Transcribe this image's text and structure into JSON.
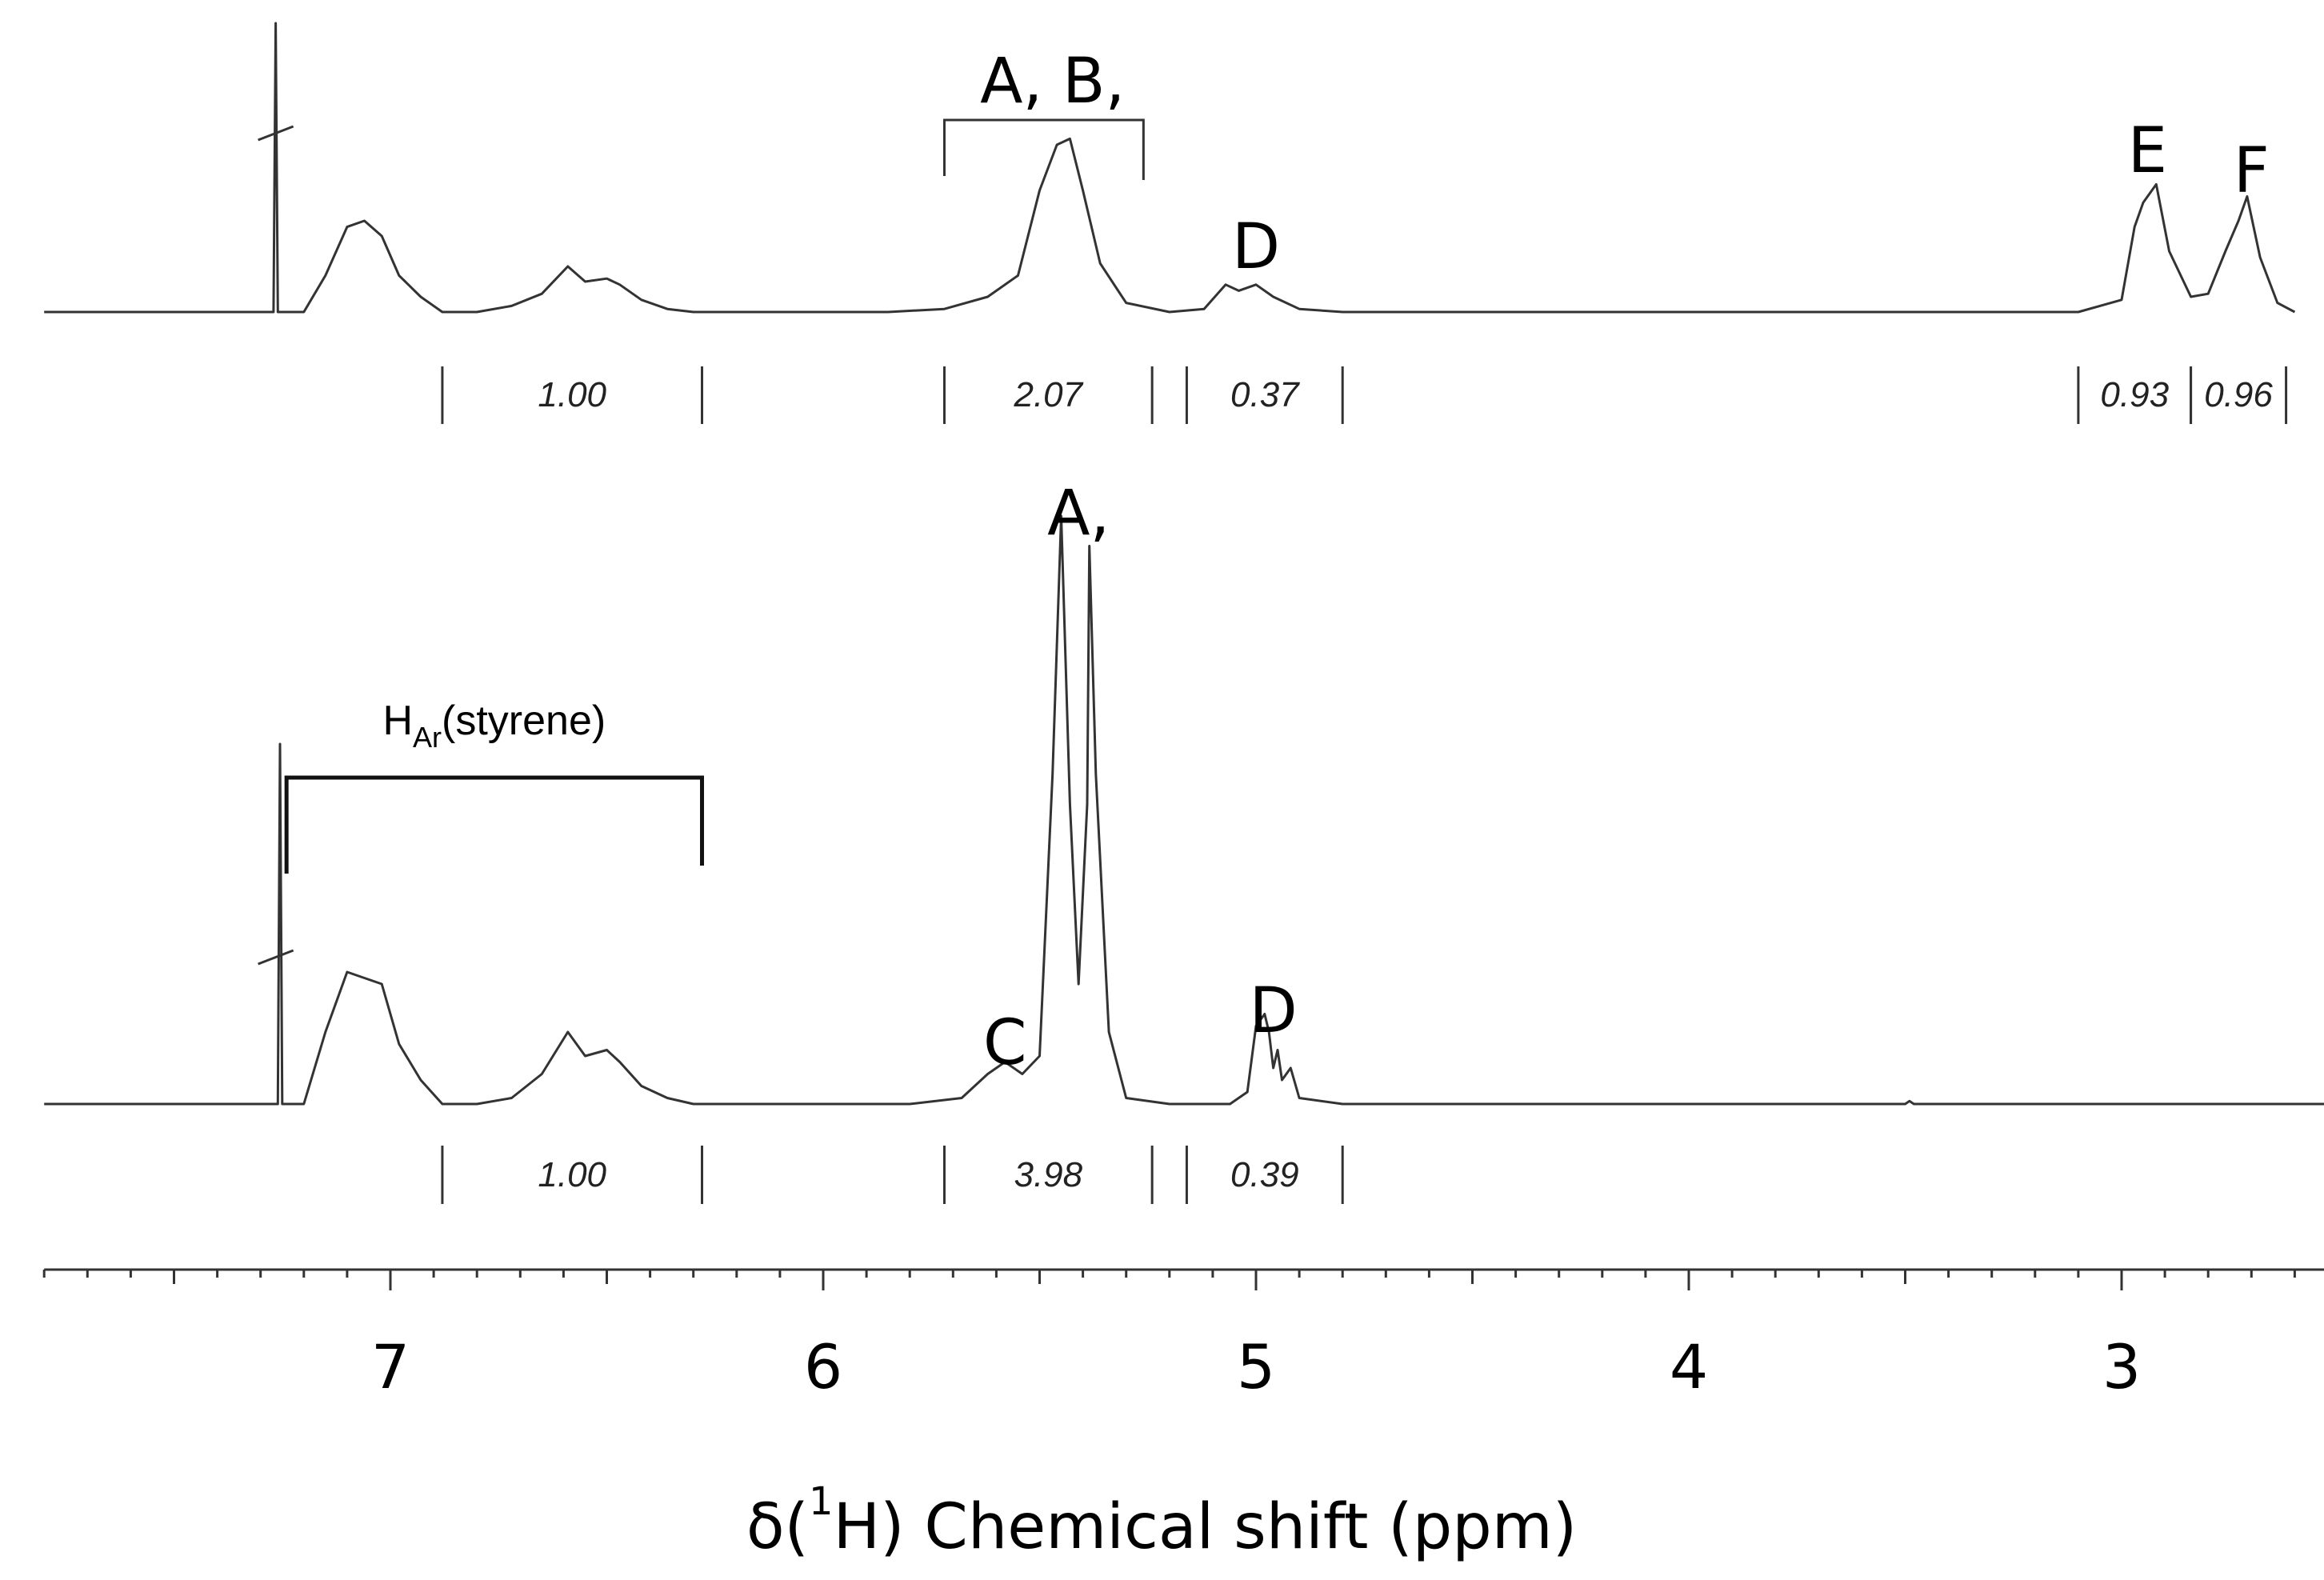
{
  "chart_data": {
    "type": "line",
    "x_axis": {
      "label_prefix": "δ(",
      "label_superscript": "1",
      "label_suffix": "H) Chemical shift (ppm)",
      "range_ppm": [
        7.8,
        2.5
      ],
      "reversed": true,
      "major_ticks": [
        7,
        6,
        5,
        4,
        3
      ],
      "minor_tick_step": 0.1
    },
    "grid": false,
    "spectra": [
      {
        "panel": "top",
        "trace": [
          [
            7.8,
            0
          ],
          [
            7.4,
            0
          ],
          [
            7.27,
            0
          ],
          [
            7.265,
            0.95
          ],
          [
            7.26,
            0
          ],
          [
            7.2,
            0
          ],
          [
            7.15,
            0.12
          ],
          [
            7.1,
            0.28
          ],
          [
            7.06,
            0.3
          ],
          [
            7.02,
            0.25
          ],
          [
            6.98,
            0.12
          ],
          [
            6.93,
            0.05
          ],
          [
            6.88,
            0
          ],
          [
            6.8,
            0
          ],
          [
            6.72,
            0.02
          ],
          [
            6.65,
            0.06
          ],
          [
            6.59,
            0.15
          ],
          [
            6.55,
            0.1
          ],
          [
            6.5,
            0.11
          ],
          [
            6.47,
            0.09
          ],
          [
            6.42,
            0.04
          ],
          [
            6.36,
            0.01
          ],
          [
            6.3,
            0
          ],
          [
            5.85,
            0
          ],
          [
            5.72,
            0.01
          ],
          [
            5.62,
            0.05
          ],
          [
            5.55,
            0.12
          ],
          [
            5.5,
            0.4
          ],
          [
            5.46,
            0.55
          ],
          [
            5.43,
            0.57
          ],
          [
            5.4,
            0.4
          ],
          [
            5.36,
            0.16
          ],
          [
            5.3,
            0.03
          ],
          [
            5.2,
            0
          ],
          [
            5.12,
            0.01
          ],
          [
            5.07,
            0.09
          ],
          [
            5.04,
            0.07
          ],
          [
            5.0,
            0.09
          ],
          [
            4.96,
            0.05
          ],
          [
            4.9,
            0.01
          ],
          [
            4.8,
            0
          ],
          [
            3.1,
            0
          ],
          [
            3.0,
            0.04
          ],
          [
            2.97,
            0.28
          ],
          [
            2.95,
            0.36
          ],
          [
            2.92,
            0.42
          ],
          [
            2.89,
            0.2
          ],
          [
            2.84,
            0.05
          ],
          [
            2.8,
            0.06
          ],
          [
            2.76,
            0.2
          ],
          [
            2.73,
            0.3
          ],
          [
            2.71,
            0.38
          ],
          [
            2.68,
            0.18
          ],
          [
            2.64,
            0.03
          ],
          [
            2.6,
            0
          ]
        ],
        "peak_labels": [
          {
            "text": "A, B,",
            "x": 5.47,
            "bracket_from": 5.72,
            "bracket_to": 5.26
          },
          {
            "text": "D",
            "x": 5.0
          },
          {
            "text": "E",
            "x": 2.94
          },
          {
            "text": "F",
            "x": 2.7
          }
        ],
        "integrals": [
          {
            "from": 6.88,
            "to": 6.28,
            "value": "1.00"
          },
          {
            "from": 5.72,
            "to": 5.24,
            "value": "2.07"
          },
          {
            "from": 5.16,
            "to": 4.8,
            "value": "0.37"
          },
          {
            "from": 3.1,
            "to": 2.84,
            "value": "0.93"
          },
          {
            "from": 2.84,
            "to": 2.62,
            "value": "0.96"
          }
        ]
      },
      {
        "panel": "bottom",
        "trace": [
          [
            7.8,
            0
          ],
          [
            7.4,
            0
          ],
          [
            7.26,
            0
          ],
          [
            7.255,
            0.6
          ],
          [
            7.25,
            0
          ],
          [
            7.2,
            0
          ],
          [
            7.15,
            0.12
          ],
          [
            7.1,
            0.22
          ],
          [
            7.06,
            0.21
          ],
          [
            7.02,
            0.2
          ],
          [
            6.98,
            0.1
          ],
          [
            6.93,
            0.04
          ],
          [
            6.88,
            0
          ],
          [
            6.8,
            0
          ],
          [
            6.72,
            0.01
          ],
          [
            6.65,
            0.05
          ],
          [
            6.59,
            0.12
          ],
          [
            6.55,
            0.08
          ],
          [
            6.5,
            0.09
          ],
          [
            6.47,
            0.07
          ],
          [
            6.42,
            0.03
          ],
          [
            6.36,
            0.01
          ],
          [
            6.3,
            0
          ],
          [
            5.8,
            0
          ],
          [
            5.68,
            0.01
          ],
          [
            5.62,
            0.05
          ],
          [
            5.58,
            0.07
          ],
          [
            5.54,
            0.05
          ],
          [
            5.5,
            0.08
          ],
          [
            5.47,
            0.55
          ],
          [
            5.45,
            0.98
          ],
          [
            5.43,
            0.5
          ],
          [
            5.41,
            0.2
          ],
          [
            5.39,
            0.5
          ],
          [
            5.385,
            0.93
          ],
          [
            5.37,
            0.55
          ],
          [
            5.34,
            0.12
          ],
          [
            5.3,
            0.01
          ],
          [
            5.2,
            0
          ],
          [
            5.06,
            0
          ],
          [
            5.02,
            0.02
          ],
          [
            5.0,
            0.13
          ],
          [
            4.98,
            0.15
          ],
          [
            4.97,
            0.12
          ],
          [
            4.96,
            0.06
          ],
          [
            4.95,
            0.09
          ],
          [
            4.94,
            0.04
          ],
          [
            4.92,
            0.06
          ],
          [
            4.9,
            0.01
          ],
          [
            4.8,
            0
          ],
          [
            3.5,
            0
          ],
          [
            3.49,
            0.005
          ],
          [
            3.48,
            0
          ],
          [
            2.5,
            0
          ]
        ],
        "peak_labels": [
          {
            "text": "A,",
            "x": 5.41
          },
          {
            "text": "C",
            "x": 5.58
          },
          {
            "text": "D",
            "x": 4.96
          }
        ],
        "region_label": {
          "main": "H",
          "sub": "Ar",
          "rest": "(styrene)",
          "from": 7.24,
          "to": 6.28
        },
        "integrals": [
          {
            "from": 6.88,
            "to": 6.28,
            "value": "1.00"
          },
          {
            "from": 5.72,
            "to": 5.24,
            "value": "3.98"
          },
          {
            "from": 5.16,
            "to": 4.8,
            "value": "0.39"
          }
        ]
      }
    ]
  }
}
